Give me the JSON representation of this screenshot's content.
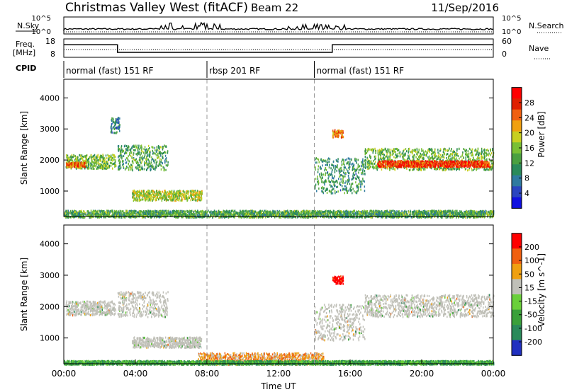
{
  "header": {
    "title": "Christmas Valley West (fitACF)",
    "beam": "Beam 22",
    "date": "11/Sep/2016"
  },
  "nsky_panel": {
    "left_label": "N.Sky",
    "right_label": "N.Search",
    "left_ticks": [
      "10^5",
      "10^0"
    ],
    "right_ticks": [
      "10^5",
      "10^0"
    ]
  },
  "freq_panel": {
    "left_label_1": "Freq.",
    "left_label_2": "[MHz]",
    "right_label": "Nave",
    "left_ticks": [
      "18",
      "8"
    ],
    "right_ticks": [
      "60",
      "0"
    ]
  },
  "cpid_panel": {
    "label": "CPID",
    "segments": [
      {
        "start_h": 0,
        "end_h": 8,
        "text": "normal (fast) 151 RF"
      },
      {
        "start_h": 8,
        "end_h": 14,
        "text": "rbsp 201 RF"
      },
      {
        "start_h": 14,
        "end_h": 24,
        "text": "normal (fast) 151 RF"
      }
    ]
  },
  "xaxis": {
    "label": "Time UT",
    "ticks": [
      "00:00",
      "04:00",
      "08:00",
      "12:00",
      "16:00",
      "20:00",
      "00:00"
    ]
  },
  "chart_data": [
    {
      "type": "heatmap",
      "name": "Power",
      "ylabel": "Slant Range [km]",
      "yticks": [
        1000,
        2000,
        3000,
        4000
      ],
      "ylim": [
        180,
        4600
      ],
      "xlim_hours": [
        0,
        24
      ],
      "colorbar_label": "Power [dB]",
      "colorbar_ticks": [
        "28",
        "24",
        "20",
        "16",
        "12",
        "8",
        "4"
      ],
      "colors": [
        "#1010e0",
        "#2a45c0",
        "#2f7aa0",
        "#2a8a5a",
        "#4aa040",
        "#7ac034",
        "#c8d020",
        "#f0a010",
        "#f06010",
        "#e02000",
        "#ff0000"
      ],
      "regions": [
        {
          "h0": 0.1,
          "h1": 2.9,
          "r0": 1750,
          "r1": 2200,
          "level": 0.45
        },
        {
          "h0": 0.1,
          "h1": 1.2,
          "r0": 1800,
          "r1": 1950,
          "level": 0.75
        },
        {
          "h0": 3.0,
          "h1": 5.8,
          "r0": 1700,
          "r1": 2500,
          "level": 0.4
        },
        {
          "h0": 2.6,
          "h1": 3.1,
          "r0": 2900,
          "r1": 3400,
          "level": 0.25
        },
        {
          "h0": 3.8,
          "h1": 7.7,
          "r0": 720,
          "r1": 1050,
          "level": 0.55
        },
        {
          "h0": 14.0,
          "h1": 16.8,
          "r0": 950,
          "r1": 2100,
          "level": 0.35
        },
        {
          "h0": 15.0,
          "h1": 15.6,
          "r0": 2750,
          "r1": 3000,
          "level": 0.75
        },
        {
          "h0": 16.8,
          "h1": 24.0,
          "r0": 1700,
          "r1": 2400,
          "level": 0.45
        },
        {
          "h0": 17.5,
          "h1": 23.8,
          "r0": 1800,
          "r1": 2000,
          "level": 0.85
        },
        {
          "h0": 0.0,
          "h1": 24.0,
          "r0": 180,
          "r1": 400,
          "level": 0.4
        }
      ]
    },
    {
      "type": "heatmap",
      "name": "Velocity",
      "ylabel": "Slant Range [km]",
      "yticks": [
        1000,
        2000,
        3000,
        4000
      ],
      "ylim": [
        180,
        4600
      ],
      "xlim_hours": [
        0,
        24
      ],
      "colorbar_label": "Velocity [m s^-1]",
      "colorbar_ticks": [
        "200",
        "100",
        "50",
        "15",
        "-15",
        "-50",
        "-100",
        "-200"
      ],
      "colors": [
        "#2030c0",
        "#2a8a5a",
        "#3aa03a",
        "#6ad03a",
        "#c0c0b8",
        "#f0a010",
        "#f06010",
        "#ff0000"
      ],
      "regions": [
        {
          "h0": 0.1,
          "h1": 2.9,
          "r0": 1750,
          "r1": 2200,
          "level": 0.5
        },
        {
          "h0": 3.0,
          "h1": 5.8,
          "r0": 1700,
          "r1": 2500,
          "level": 0.5
        },
        {
          "h0": 3.8,
          "h1": 7.7,
          "r0": 720,
          "r1": 1050,
          "level": 0.5
        },
        {
          "h0": 14.0,
          "h1": 16.8,
          "r0": 950,
          "r1": 2100,
          "level": 0.5
        },
        {
          "h0": 15.0,
          "h1": 15.6,
          "r0": 2750,
          "r1": 3000,
          "level": 1.0
        },
        {
          "h0": 16.8,
          "h1": 24.0,
          "r0": 1700,
          "r1": 2400,
          "level": 0.5
        },
        {
          "h0": 7.5,
          "h1": 14.5,
          "r0": 180,
          "r1": 550,
          "level": 0.7
        },
        {
          "h0": 0.0,
          "h1": 24.0,
          "r0": 180,
          "r1": 300,
          "level": 0.3
        }
      ]
    }
  ]
}
